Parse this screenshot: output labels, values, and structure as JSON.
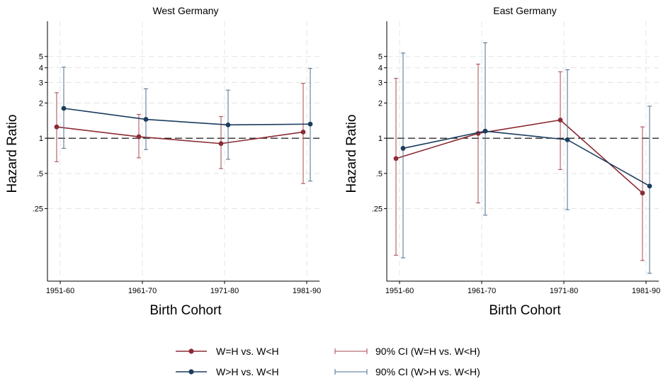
{
  "legend": {
    "position": "bottom",
    "items": [
      {
        "label": "W=H vs. W<H",
        "kind": "line-marker",
        "color": "#8b2c35"
      },
      {
        "label": "90% CI (W=H vs. W<H)",
        "kind": "capped-range",
        "color": "#a8484f"
      },
      {
        "label": "W>H vs. W<H",
        "kind": "line-marker",
        "color": "#1b3c5e"
      },
      {
        "label": "90% CI (W>H vs. W<H)",
        "kind": "capped-range",
        "color": "#4d6f8e"
      }
    ]
  },
  "chart_data": [
    {
      "type": "line",
      "title": "West Germany",
      "xlabel": "Birth Cohort",
      "ylabel": "Hazard Ratio",
      "yscale": "log",
      "ylim": [
        0.06,
        10
      ],
      "yticks": [
        {
          "v": 0.25,
          "label": ".25"
        },
        {
          "v": 0.5,
          "label": ".5"
        },
        {
          "v": 1,
          "label": "1"
        },
        {
          "v": 2,
          "label": "2"
        },
        {
          "v": 3,
          "label": "3"
        },
        {
          "v": 4,
          "label": "4"
        },
        {
          "v": 5,
          "label": "5"
        }
      ],
      "reference_line": 1,
      "grid": true,
      "categories": [
        "1951-60",
        "1961-70",
        "1971-80",
        "1981-90"
      ],
      "series": [
        {
          "name": "W=H vs. W<H",
          "color": "#8b2c35",
          "ci_color": "#a8484f",
          "values": [
            1.25,
            1.03,
            0.9,
            1.13
          ],
          "ci_low": [
            0.63,
            0.68,
            0.55,
            0.41
          ],
          "ci_high": [
            2.45,
            1.6,
            1.53,
            2.95
          ]
        },
        {
          "name": "W>H vs. W<H",
          "color": "#1b3c5e",
          "ci_color": "#4d6f8e",
          "values": [
            1.8,
            1.45,
            1.3,
            1.32
          ],
          "ci_low": [
            0.82,
            0.8,
            0.66,
            0.43
          ],
          "ci_high": [
            4.05,
            2.65,
            2.58,
            3.95
          ]
        }
      ]
    },
    {
      "type": "line",
      "title": "East Germany",
      "xlabel": "Birth Cohort",
      "ylabel": "Hazard Ratio",
      "yscale": "log",
      "ylim": [
        0.06,
        10
      ],
      "yticks": [
        {
          "v": 0.25,
          "label": ".25"
        },
        {
          "v": 0.5,
          "label": ".5"
        },
        {
          "v": 1,
          "label": "1"
        },
        {
          "v": 2,
          "label": "2"
        },
        {
          "v": 3,
          "label": "3"
        },
        {
          "v": 4,
          "label": "4"
        },
        {
          "v": 5,
          "label": "5"
        }
      ],
      "reference_line": 1,
      "grid": true,
      "categories": [
        "1951-60",
        "1961-70",
        "1971-80",
        "1981-90"
      ],
      "series": [
        {
          "name": "W=H vs. W<H",
          "color": "#8b2c35",
          "ci_color": "#a8484f",
          "values": [
            0.67,
            1.1,
            1.43,
            0.34
          ],
          "ci_low": [
            0.1,
            0.28,
            0.54,
            0.09
          ],
          "ci_high": [
            3.25,
            4.3,
            3.7,
            1.25
          ]
        },
        {
          "name": "W>H vs. W<H",
          "color": "#1b3c5e",
          "ci_color": "#4d6f8e",
          "values": [
            0.82,
            1.15,
            0.97,
            0.39
          ],
          "ci_low": [
            0.095,
            0.22,
            0.245,
            0.07
          ],
          "ci_high": [
            5.35,
            6.55,
            3.85,
            1.88
          ]
        }
      ]
    }
  ]
}
